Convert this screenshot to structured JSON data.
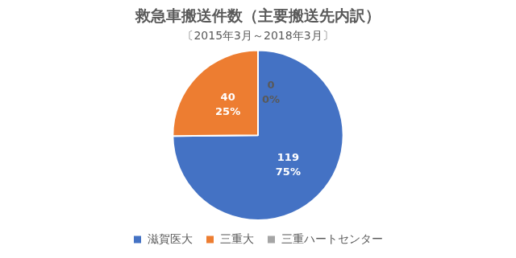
{
  "chart_data": {
    "type": "pie",
    "title": "救急車搬送件数（主要搬送先内訳）",
    "subtitle": "〔2015年3月～2018年3月〕",
    "categories": [
      "滋賀医大",
      "三重大",
      "三重ハートセンター"
    ],
    "values": [
      119,
      40,
      0
    ],
    "percentages": [
      75,
      25,
      0
    ],
    "percentage_labels": [
      "75%",
      "25%",
      "0%"
    ],
    "colors": [
      "#4472c4",
      "#ed7d31",
      "#a5a5a5"
    ],
    "data_labels": true,
    "legend": "bottom"
  }
}
